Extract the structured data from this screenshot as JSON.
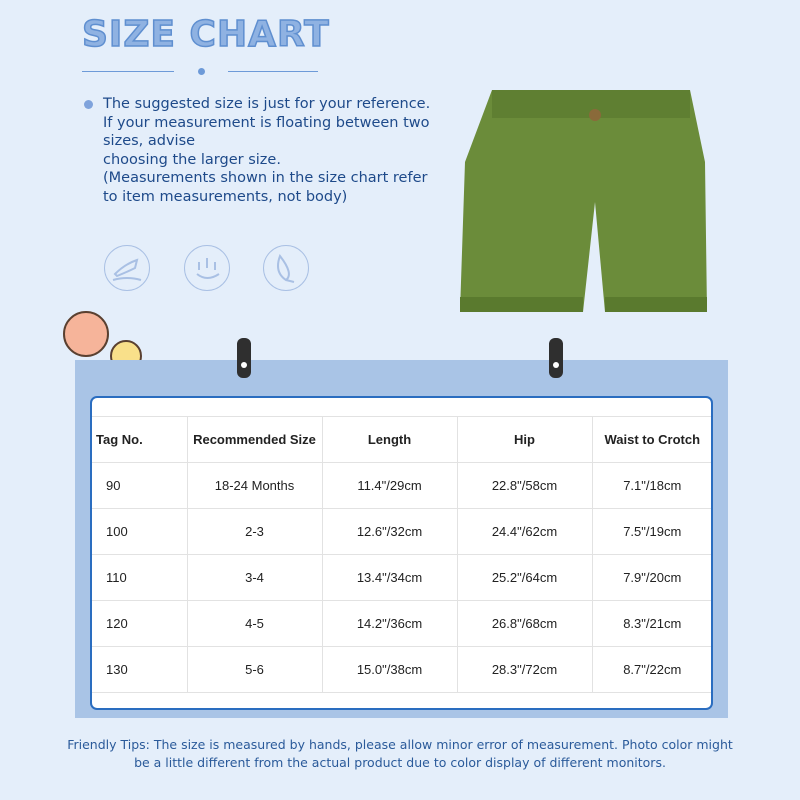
{
  "title": "SIZE CHART",
  "note": "The suggested size is just for your reference. If your measurement is floating between two sizes, advise\n choosing the larger size.\n(Measurements shown in the size chart refer to item measurements, not body)",
  "icons": [
    "soft-hand-icon",
    "breathable-icon",
    "feather-light-icon"
  ],
  "product_color": "#6b8c3a",
  "table": {
    "headers": [
      "Tag No.",
      "Recommended Size",
      "Length",
      "Hip",
      "Waist to Crotch"
    ],
    "rows": [
      [
        "90",
        "18-24 Months",
        "11.4\"/29cm",
        "22.8\"/58cm",
        "7.1\"/18cm"
      ],
      [
        "100",
        "2-3",
        "12.6\"/32cm",
        "24.4\"/62cm",
        "7.5\"/19cm"
      ],
      [
        "110",
        "3-4",
        "13.4\"/34cm",
        "25.2\"/64cm",
        "7.9\"/20cm"
      ],
      [
        "120",
        "4-5",
        "14.2\"/36cm",
        "26.8\"/68cm",
        "8.3\"/21cm"
      ],
      [
        "130",
        "5-6",
        "15.0\"/38cm",
        "28.3\"/72cm",
        "8.7\"/22cm"
      ]
    ]
  },
  "tips": "Friendly Tips: The size is measured by hands, please allow minor error of measurement. Photo color might be a little different from the actual product due to color display of different monitors."
}
